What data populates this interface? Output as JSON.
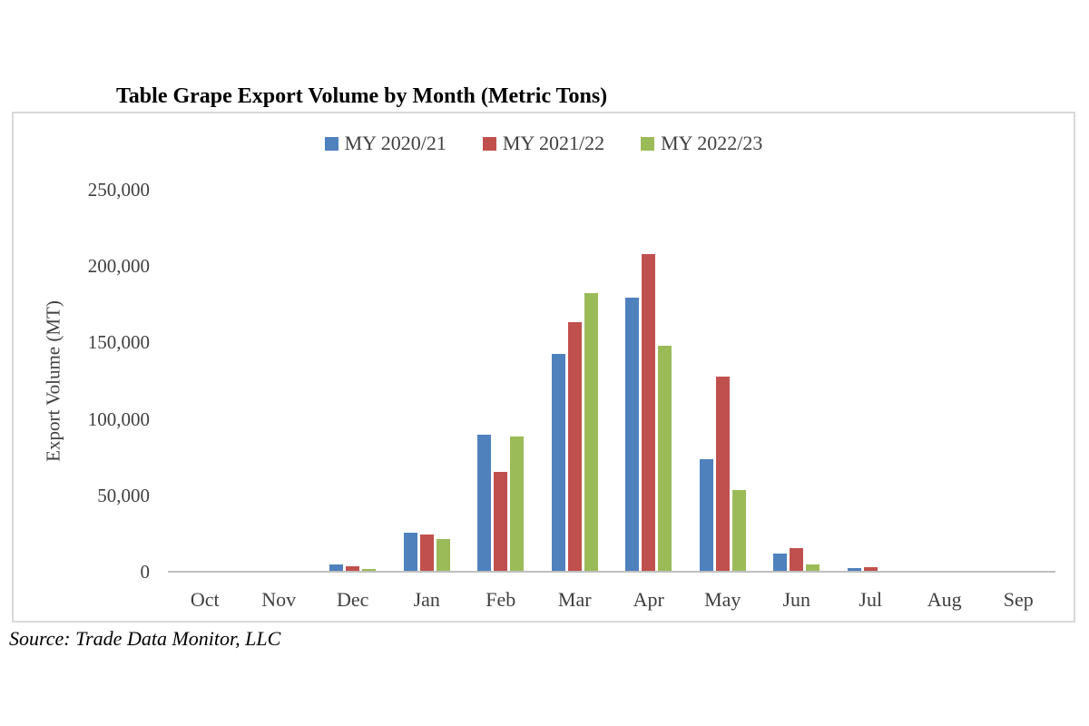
{
  "page": {
    "title": "Table Grape Export Volume by Month (Metric Tons)",
    "source_note": "Source: Trade Data Monitor, LLC"
  },
  "chart_data": {
    "type": "bar",
    "title": "Table Grape Export Volume by Month (Metric Tons)",
    "xlabel": "",
    "ylabel": "Export Volume (MT)",
    "categories": [
      "Oct",
      "Nov",
      "Dec",
      "Jan",
      "Feb",
      "Mar",
      "Apr",
      "May",
      "Jun",
      "Jul",
      "Aug",
      "Sep"
    ],
    "series": [
      {
        "name": "MY 2020/21",
        "color": "#4F81BD",
        "values": [
          0,
          0,
          4000,
          25000,
          89000,
          142000,
          179000,
          73000,
          11000,
          1500,
          0,
          0
        ]
      },
      {
        "name": "MY 2021/22",
        "color": "#C0504D",
        "values": [
          0,
          0,
          3000,
          24000,
          65000,
          163000,
          207000,
          127000,
          15000,
          2500,
          0,
          0
        ]
      },
      {
        "name": "MY 2022/23",
        "color": "#9BBB59",
        "values": [
          0,
          0,
          1000,
          21000,
          88000,
          182000,
          147000,
          53000,
          4000,
          0,
          0,
          0
        ]
      }
    ],
    "ylim": [
      0,
      250000
    ],
    "yticks": [
      {
        "value": 0,
        "label": "0"
      },
      {
        "value": 50000,
        "label": "50,000"
      },
      {
        "value": 100000,
        "label": "100,000"
      },
      {
        "value": 150000,
        "label": "150,000"
      },
      {
        "value": 200000,
        "label": "200,000"
      },
      {
        "value": 250000,
        "label": "250,000"
      }
    ],
    "legend_position": "top",
    "grid": false,
    "axis_line_color": "#bfbfbf",
    "frame_border_color": "#d9d9d9",
    "source": "Source: Trade Data Monitor, LLC"
  }
}
